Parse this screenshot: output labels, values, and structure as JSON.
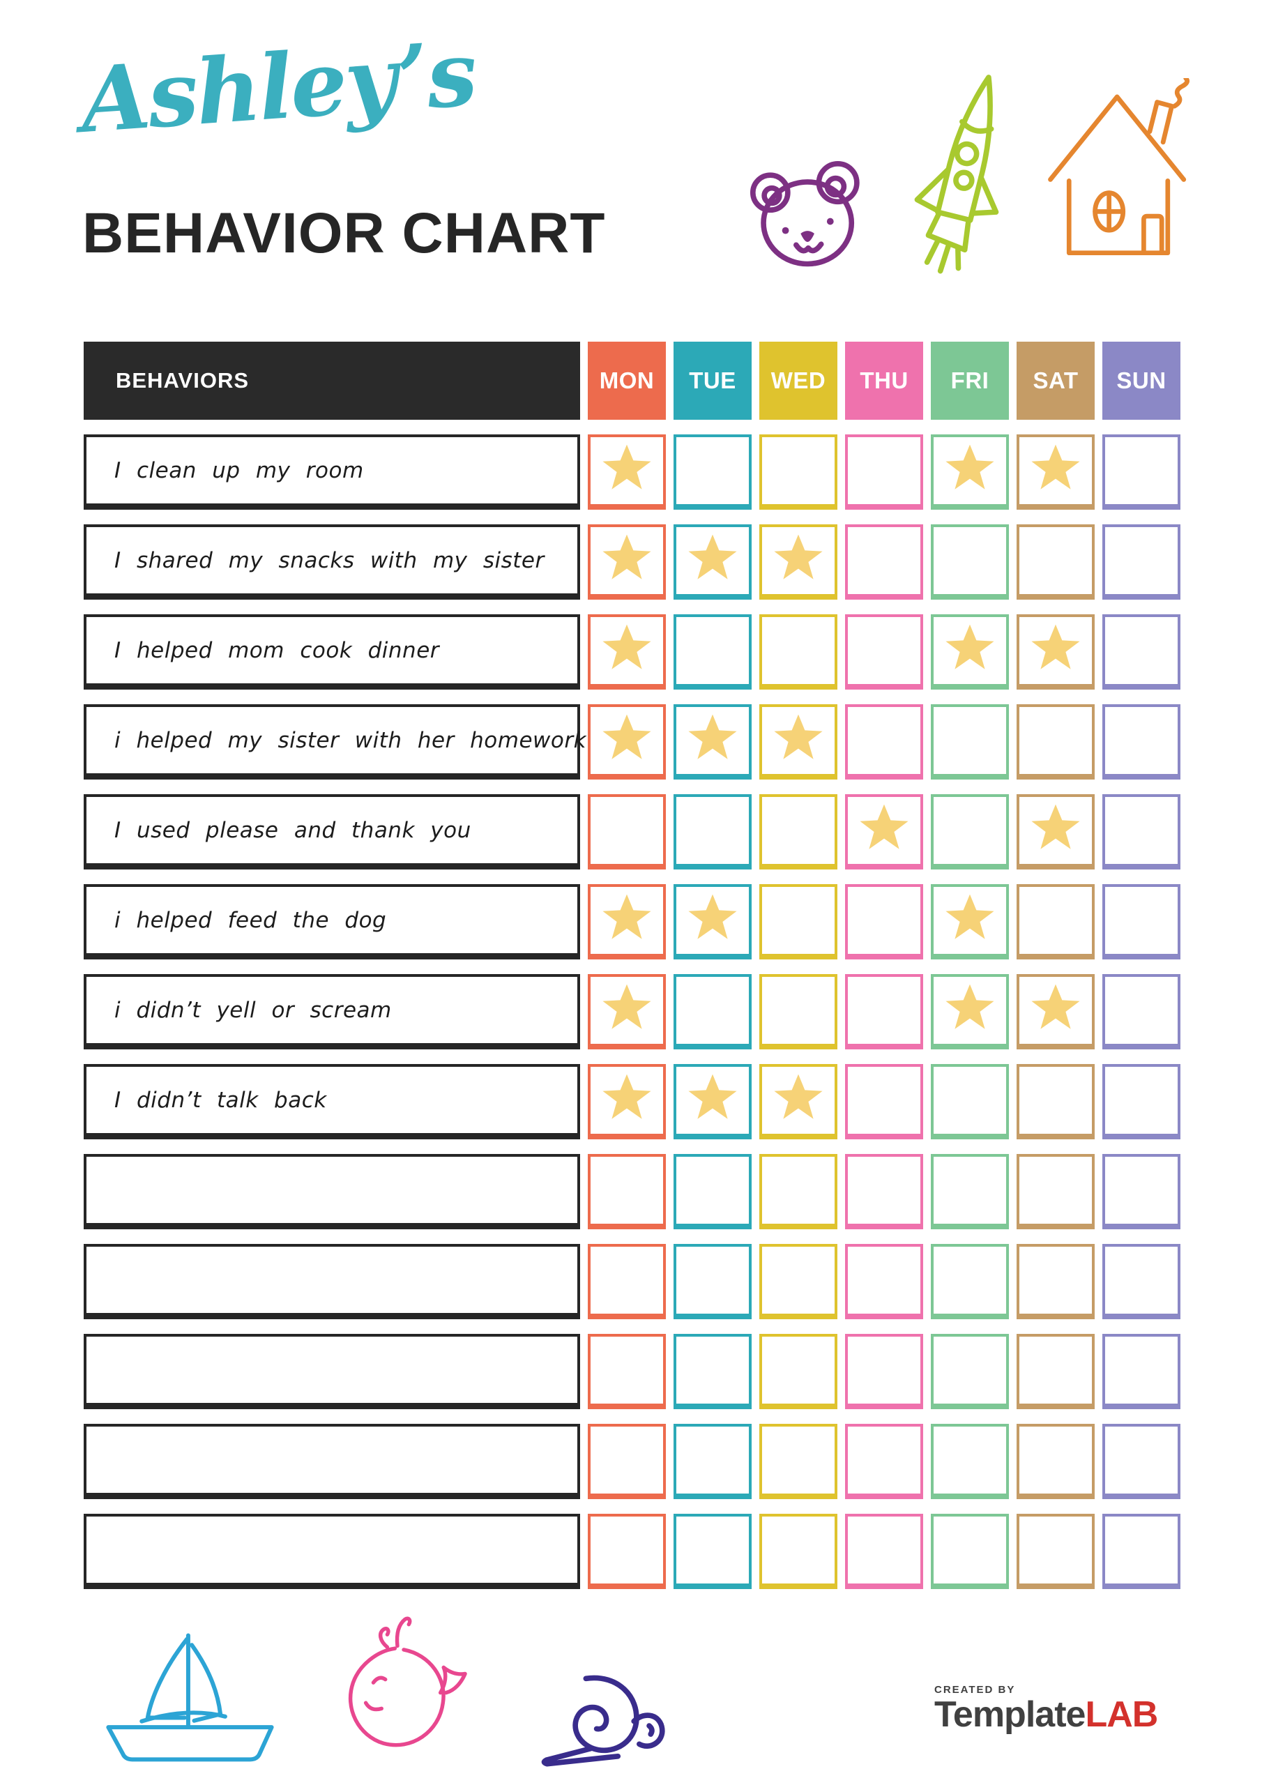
{
  "header": {
    "owner_name": "Ashley’s",
    "title": "BEHAVIOR CHART",
    "doodles": [
      "bear-icon",
      "rocket-icon",
      "house-icon"
    ]
  },
  "table": {
    "behaviors_header": "BEHAVIORS",
    "header_bg": "#2A2A2A",
    "star_color": "#F6D277",
    "days": [
      {
        "label": "MON",
        "color": "#ED6B4D"
      },
      {
        "label": "TUE",
        "color": "#2CA9B7"
      },
      {
        "label": "WED",
        "color": "#DFC32E"
      },
      {
        "label": "THU",
        "color": "#EF72AD"
      },
      {
        "label": "FRI",
        "color": "#7DC795"
      },
      {
        "label": "SAT",
        "color": "#C59C66"
      },
      {
        "label": "SUN",
        "color": "#8B88C6"
      }
    ],
    "rows": [
      {
        "behavior": "I clean up my room",
        "stars": [
          1,
          0,
          0,
          0,
          1,
          1,
          0
        ]
      },
      {
        "behavior": "I shared my snacks with my sister",
        "stars": [
          1,
          1,
          1,
          0,
          0,
          0,
          0
        ]
      },
      {
        "behavior": "I helped mom cook dinner",
        "stars": [
          1,
          0,
          0,
          0,
          1,
          1,
          0
        ]
      },
      {
        "behavior": "i helped my sister with her homework",
        "stars": [
          1,
          1,
          1,
          0,
          0,
          0,
          0
        ]
      },
      {
        "behavior": "I used please and thank you",
        "stars": [
          0,
          0,
          0,
          1,
          0,
          1,
          0
        ]
      },
      {
        "behavior": "i helped feed the dog",
        "stars": [
          1,
          1,
          0,
          0,
          1,
          0,
          0
        ]
      },
      {
        "behavior": "i didn’t yell or scream",
        "stars": [
          1,
          0,
          0,
          0,
          1,
          1,
          0
        ]
      },
      {
        "behavior": "I didn’t talk back",
        "stars": [
          1,
          1,
          1,
          0,
          0,
          0,
          0
        ]
      },
      {
        "behavior": "",
        "stars": [
          0,
          0,
          0,
          0,
          0,
          0,
          0
        ]
      },
      {
        "behavior": "",
        "stars": [
          0,
          0,
          0,
          0,
          0,
          0,
          0
        ]
      },
      {
        "behavior": "",
        "stars": [
          0,
          0,
          0,
          0,
          0,
          0,
          0
        ]
      },
      {
        "behavior": "",
        "stars": [
          0,
          0,
          0,
          0,
          0,
          0,
          0
        ]
      },
      {
        "behavior": "",
        "stars": [
          0,
          0,
          0,
          0,
          0,
          0,
          0
        ]
      }
    ]
  },
  "footer": {
    "doodles": [
      "sailboat-icon",
      "whale-icon",
      "snail-icon"
    ],
    "created_by": "CREATED BY",
    "brand_name": "Template",
    "brand_suffix": "LAB"
  },
  "colors": {
    "title_script": "#3BAFBF",
    "title_text": "#262626",
    "table_header_bg": "#2A2A2A",
    "behavior_border": "#262626",
    "star": "#F6D277",
    "bear": "#7D3083",
    "rocket": "#A8C92F",
    "house": "#E5862F",
    "sailboat": "#2CA4D5",
    "whale": "#E8478F",
    "snail": "#392C8C",
    "brand_red": "#D3312C",
    "brand_gray": "#404040"
  }
}
